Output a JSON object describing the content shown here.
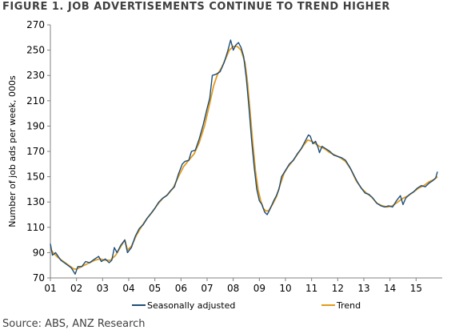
{
  "title": "FIGURE 1. JOB ADVERTISEMENTS CONTINUE TO TREND HIGHER",
  "source": "Source: ABS, ANZ Research",
  "chart_data": {
    "type": "line",
    "ylabel": "Number of job ads per week, 000s",
    "xlabel": "",
    "ylim": [
      70,
      270
    ],
    "yticks": [
      70,
      90,
      110,
      130,
      150,
      170,
      190,
      210,
      230,
      250,
      270
    ],
    "xlim": [
      2001,
      2016
    ],
    "xticks": [
      {
        "value": 2001,
        "label": "01"
      },
      {
        "value": 2002,
        "label": "02"
      },
      {
        "value": 2003,
        "label": "03"
      },
      {
        "value": 2004,
        "label": "04"
      },
      {
        "value": 2005,
        "label": "05"
      },
      {
        "value": 2006,
        "label": "06"
      },
      {
        "value": 2007,
        "label": "07"
      },
      {
        "value": 2008,
        "label": "08"
      },
      {
        "value": 2009,
        "label": "09"
      },
      {
        "value": 2010,
        "label": "10"
      },
      {
        "value": 2011,
        "label": "11"
      },
      {
        "value": 2012,
        "label": "12"
      },
      {
        "value": 2013,
        "label": "13"
      },
      {
        "value": 2014,
        "label": "14"
      },
      {
        "value": 2015,
        "label": "15"
      }
    ],
    "grid": false,
    "legend_position": "bottom",
    "series": [
      {
        "name": "Seasonally adjusted",
        "color": "#1f4e79",
        "points": [
          [
            2001.0,
            97
          ],
          [
            2001.08,
            88
          ],
          [
            2001.2,
            90
          ],
          [
            2001.4,
            84
          ],
          [
            2001.6,
            81
          ],
          [
            2001.8,
            78
          ],
          [
            2001.95,
            73
          ],
          [
            2002.05,
            79
          ],
          [
            2002.2,
            79
          ],
          [
            2002.35,
            83
          ],
          [
            2002.5,
            82
          ],
          [
            2002.7,
            85
          ],
          [
            2002.85,
            87
          ],
          [
            2002.95,
            83
          ],
          [
            2003.1,
            85
          ],
          [
            2003.25,
            82
          ],
          [
            2003.35,
            84
          ],
          [
            2003.45,
            94
          ],
          [
            2003.55,
            90
          ],
          [
            2003.7,
            96
          ],
          [
            2003.85,
            100
          ],
          [
            2003.95,
            90
          ],
          [
            2004.1,
            94
          ],
          [
            2004.25,
            103
          ],
          [
            2004.4,
            109
          ],
          [
            2004.55,
            112
          ],
          [
            2004.7,
            117
          ],
          [
            2004.85,
            121
          ],
          [
            2005.0,
            125
          ],
          [
            2005.15,
            130
          ],
          [
            2005.3,
            133
          ],
          [
            2005.45,
            135
          ],
          [
            2005.6,
            139
          ],
          [
            2005.75,
            142
          ],
          [
            2005.9,
            152
          ],
          [
            2006.05,
            160
          ],
          [
            2006.15,
            162
          ],
          [
            2006.3,
            163
          ],
          [
            2006.4,
            170
          ],
          [
            2006.55,
            171
          ],
          [
            2006.7,
            180
          ],
          [
            2006.85,
            191
          ],
          [
            2007.0,
            204
          ],
          [
            2007.1,
            212
          ],
          [
            2007.2,
            230
          ],
          [
            2007.35,
            231
          ],
          [
            2007.5,
            233
          ],
          [
            2007.65,
            240
          ],
          [
            2007.8,
            250
          ],
          [
            2007.9,
            258
          ],
          [
            2008.0,
            250
          ],
          [
            2008.1,
            254
          ],
          [
            2008.2,
            256
          ],
          [
            2008.3,
            252
          ],
          [
            2008.4,
            245
          ],
          [
            2008.5,
            228
          ],
          [
            2008.6,
            205
          ],
          [
            2008.7,
            180
          ],
          [
            2008.8,
            158
          ],
          [
            2008.9,
            140
          ],
          [
            2009.0,
            131
          ],
          [
            2009.1,
            128
          ],
          [
            2009.2,
            122
          ],
          [
            2009.3,
            120
          ],
          [
            2009.4,
            124
          ],
          [
            2009.55,
            131
          ],
          [
            2009.65,
            135
          ],
          [
            2009.75,
            140
          ],
          [
            2009.85,
            150
          ],
          [
            2010.0,
            155
          ],
          [
            2010.15,
            160
          ],
          [
            2010.3,
            163
          ],
          [
            2010.45,
            168
          ],
          [
            2010.6,
            172
          ],
          [
            2010.75,
            178
          ],
          [
            2010.88,
            183
          ],
          [
            2010.95,
            182
          ],
          [
            2011.05,
            176
          ],
          [
            2011.15,
            178
          ],
          [
            2011.25,
            173
          ],
          [
            2011.3,
            169
          ],
          [
            2011.4,
            174
          ],
          [
            2011.55,
            172
          ],
          [
            2011.7,
            170
          ],
          [
            2011.85,
            167
          ],
          [
            2012.0,
            166
          ],
          [
            2012.15,
            165
          ],
          [
            2012.3,
            163
          ],
          [
            2012.45,
            158
          ],
          [
            2012.6,
            152
          ],
          [
            2012.75,
            146
          ],
          [
            2012.9,
            141
          ],
          [
            2013.05,
            137
          ],
          [
            2013.2,
            136
          ],
          [
            2013.35,
            133
          ],
          [
            2013.5,
            129
          ],
          [
            2013.65,
            127
          ],
          [
            2013.8,
            126
          ],
          [
            2013.95,
            127
          ],
          [
            2014.1,
            126
          ],
          [
            2014.25,
            131
          ],
          [
            2014.4,
            135
          ],
          [
            2014.5,
            128
          ],
          [
            2014.6,
            133
          ],
          [
            2014.75,
            136
          ],
          [
            2014.9,
            138
          ],
          [
            2015.05,
            141
          ],
          [
            2015.2,
            143
          ],
          [
            2015.35,
            142
          ],
          [
            2015.5,
            145
          ],
          [
            2015.65,
            147
          ],
          [
            2015.75,
            149
          ],
          [
            2015.82,
            154
          ]
        ]
      },
      {
        "name": "Trend",
        "color": "#e39b1b",
        "points": [
          [
            2001.0,
            93
          ],
          [
            2001.1,
            90
          ],
          [
            2001.3,
            86
          ],
          [
            2001.5,
            83
          ],
          [
            2001.7,
            80
          ],
          [
            2001.9,
            77
          ],
          [
            2002.0,
            77
          ],
          [
            2002.1,
            78
          ],
          [
            2002.3,
            80
          ],
          [
            2002.5,
            82
          ],
          [
            2002.7,
            84
          ],
          [
            2002.9,
            85
          ],
          [
            2003.1,
            84
          ],
          [
            2003.3,
            84
          ],
          [
            2003.5,
            88
          ],
          [
            2003.7,
            95
          ],
          [
            2003.85,
            100
          ],
          [
            2003.95,
            92
          ],
          [
            2004.1,
            95
          ],
          [
            2004.3,
            104
          ],
          [
            2004.5,
            111
          ],
          [
            2004.7,
            117
          ],
          [
            2004.9,
            122
          ],
          [
            2005.1,
            128
          ],
          [
            2005.3,
            133
          ],
          [
            2005.5,
            136
          ],
          [
            2005.7,
            141
          ],
          [
            2005.9,
            150
          ],
          [
            2006.1,
            158
          ],
          [
            2006.3,
            163
          ],
          [
            2006.5,
            168
          ],
          [
            2006.7,
            177
          ],
          [
            2006.9,
            190
          ],
          [
            2007.1,
            208
          ],
          [
            2007.25,
            222
          ],
          [
            2007.4,
            231
          ],
          [
            2007.55,
            236
          ],
          [
            2007.7,
            243
          ],
          [
            2007.85,
            250
          ],
          [
            2008.0,
            253
          ],
          [
            2008.15,
            253
          ],
          [
            2008.3,
            250
          ],
          [
            2008.45,
            240
          ],
          [
            2008.55,
            224
          ],
          [
            2008.65,
            200
          ],
          [
            2008.75,
            176
          ],
          [
            2008.85,
            155
          ],
          [
            2008.95,
            140
          ],
          [
            2009.05,
            131
          ],
          [
            2009.15,
            125
          ],
          [
            2009.25,
            123
          ],
          [
            2009.35,
            123
          ],
          [
            2009.5,
            128
          ],
          [
            2009.65,
            134
          ],
          [
            2009.8,
            144
          ],
          [
            2009.95,
            153
          ],
          [
            2010.1,
            158
          ],
          [
            2010.3,
            163
          ],
          [
            2010.5,
            169
          ],
          [
            2010.7,
            175
          ],
          [
            2010.85,
            179
          ],
          [
            2011.0,
            178
          ],
          [
            2011.15,
            176
          ],
          [
            2011.3,
            174
          ],
          [
            2011.5,
            172
          ],
          [
            2011.7,
            169
          ],
          [
            2011.9,
            167
          ],
          [
            2012.1,
            165
          ],
          [
            2012.3,
            162
          ],
          [
            2012.5,
            156
          ],
          [
            2012.7,
            147
          ],
          [
            2012.9,
            141
          ],
          [
            2013.1,
            137
          ],
          [
            2013.3,
            134
          ],
          [
            2013.5,
            129
          ],
          [
            2013.7,
            127
          ],
          [
            2013.9,
            126
          ],
          [
            2014.1,
            127
          ],
          [
            2014.3,
            130
          ],
          [
            2014.5,
            133
          ],
          [
            2014.7,
            135
          ],
          [
            2014.9,
            138
          ],
          [
            2015.1,
            141
          ],
          [
            2015.3,
            143
          ],
          [
            2015.5,
            146
          ],
          [
            2015.7,
            148
          ],
          [
            2015.82,
            150
          ]
        ]
      }
    ]
  }
}
